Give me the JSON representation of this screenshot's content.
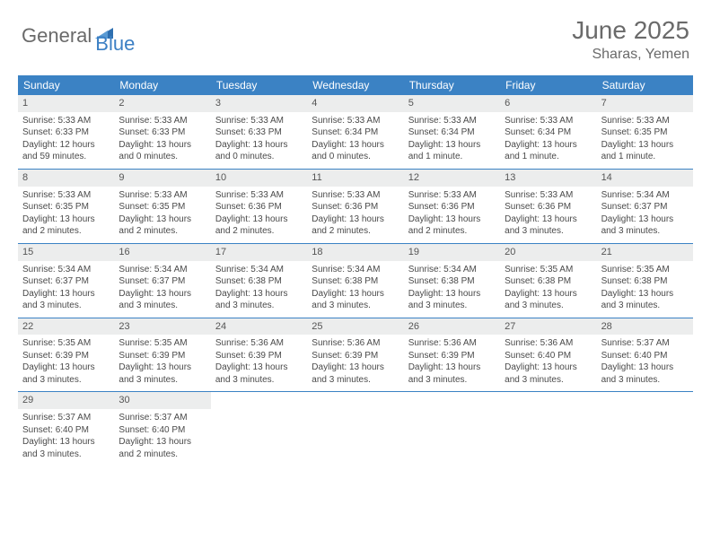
{
  "brand": {
    "word1": "General",
    "word2": "Blue"
  },
  "title": "June 2025",
  "location": "Sharas, Yemen",
  "colors": {
    "header_bg": "#3b82c4",
    "header_text": "#ffffff",
    "daynum_bg": "#eceded",
    "rule": "#3b82c4",
    "body_text": "#4a4a4a",
    "brand_gray": "#6a6a6a",
    "brand_blue": "#3b7fc4",
    "page_bg": "#ffffff"
  },
  "day_names": [
    "Sunday",
    "Monday",
    "Tuesday",
    "Wednesday",
    "Thursday",
    "Friday",
    "Saturday"
  ],
  "weeks": [
    [
      {
        "n": "1",
        "sr": "Sunrise: 5:33 AM",
        "ss": "Sunset: 6:33 PM",
        "dl": "Daylight: 12 hours and 59 minutes."
      },
      {
        "n": "2",
        "sr": "Sunrise: 5:33 AM",
        "ss": "Sunset: 6:33 PM",
        "dl": "Daylight: 13 hours and 0 minutes."
      },
      {
        "n": "3",
        "sr": "Sunrise: 5:33 AM",
        "ss": "Sunset: 6:33 PM",
        "dl": "Daylight: 13 hours and 0 minutes."
      },
      {
        "n": "4",
        "sr": "Sunrise: 5:33 AM",
        "ss": "Sunset: 6:34 PM",
        "dl": "Daylight: 13 hours and 0 minutes."
      },
      {
        "n": "5",
        "sr": "Sunrise: 5:33 AM",
        "ss": "Sunset: 6:34 PM",
        "dl": "Daylight: 13 hours and 1 minute."
      },
      {
        "n": "6",
        "sr": "Sunrise: 5:33 AM",
        "ss": "Sunset: 6:34 PM",
        "dl": "Daylight: 13 hours and 1 minute."
      },
      {
        "n": "7",
        "sr": "Sunrise: 5:33 AM",
        "ss": "Sunset: 6:35 PM",
        "dl": "Daylight: 13 hours and 1 minute."
      }
    ],
    [
      {
        "n": "8",
        "sr": "Sunrise: 5:33 AM",
        "ss": "Sunset: 6:35 PM",
        "dl": "Daylight: 13 hours and 2 minutes."
      },
      {
        "n": "9",
        "sr": "Sunrise: 5:33 AM",
        "ss": "Sunset: 6:35 PM",
        "dl": "Daylight: 13 hours and 2 minutes."
      },
      {
        "n": "10",
        "sr": "Sunrise: 5:33 AM",
        "ss": "Sunset: 6:36 PM",
        "dl": "Daylight: 13 hours and 2 minutes."
      },
      {
        "n": "11",
        "sr": "Sunrise: 5:33 AM",
        "ss": "Sunset: 6:36 PM",
        "dl": "Daylight: 13 hours and 2 minutes."
      },
      {
        "n": "12",
        "sr": "Sunrise: 5:33 AM",
        "ss": "Sunset: 6:36 PM",
        "dl": "Daylight: 13 hours and 2 minutes."
      },
      {
        "n": "13",
        "sr": "Sunrise: 5:33 AM",
        "ss": "Sunset: 6:36 PM",
        "dl": "Daylight: 13 hours and 3 minutes."
      },
      {
        "n": "14",
        "sr": "Sunrise: 5:34 AM",
        "ss": "Sunset: 6:37 PM",
        "dl": "Daylight: 13 hours and 3 minutes."
      }
    ],
    [
      {
        "n": "15",
        "sr": "Sunrise: 5:34 AM",
        "ss": "Sunset: 6:37 PM",
        "dl": "Daylight: 13 hours and 3 minutes."
      },
      {
        "n": "16",
        "sr": "Sunrise: 5:34 AM",
        "ss": "Sunset: 6:37 PM",
        "dl": "Daylight: 13 hours and 3 minutes."
      },
      {
        "n": "17",
        "sr": "Sunrise: 5:34 AM",
        "ss": "Sunset: 6:38 PM",
        "dl": "Daylight: 13 hours and 3 minutes."
      },
      {
        "n": "18",
        "sr": "Sunrise: 5:34 AM",
        "ss": "Sunset: 6:38 PM",
        "dl": "Daylight: 13 hours and 3 minutes."
      },
      {
        "n": "19",
        "sr": "Sunrise: 5:34 AM",
        "ss": "Sunset: 6:38 PM",
        "dl": "Daylight: 13 hours and 3 minutes."
      },
      {
        "n": "20",
        "sr": "Sunrise: 5:35 AM",
        "ss": "Sunset: 6:38 PM",
        "dl": "Daylight: 13 hours and 3 minutes."
      },
      {
        "n": "21",
        "sr": "Sunrise: 5:35 AM",
        "ss": "Sunset: 6:38 PM",
        "dl": "Daylight: 13 hours and 3 minutes."
      }
    ],
    [
      {
        "n": "22",
        "sr": "Sunrise: 5:35 AM",
        "ss": "Sunset: 6:39 PM",
        "dl": "Daylight: 13 hours and 3 minutes."
      },
      {
        "n": "23",
        "sr": "Sunrise: 5:35 AM",
        "ss": "Sunset: 6:39 PM",
        "dl": "Daylight: 13 hours and 3 minutes."
      },
      {
        "n": "24",
        "sr": "Sunrise: 5:36 AM",
        "ss": "Sunset: 6:39 PM",
        "dl": "Daylight: 13 hours and 3 minutes."
      },
      {
        "n": "25",
        "sr": "Sunrise: 5:36 AM",
        "ss": "Sunset: 6:39 PM",
        "dl": "Daylight: 13 hours and 3 minutes."
      },
      {
        "n": "26",
        "sr": "Sunrise: 5:36 AM",
        "ss": "Sunset: 6:39 PM",
        "dl": "Daylight: 13 hours and 3 minutes."
      },
      {
        "n": "27",
        "sr": "Sunrise: 5:36 AM",
        "ss": "Sunset: 6:40 PM",
        "dl": "Daylight: 13 hours and 3 minutes."
      },
      {
        "n": "28",
        "sr": "Sunrise: 5:37 AM",
        "ss": "Sunset: 6:40 PM",
        "dl": "Daylight: 13 hours and 3 minutes."
      }
    ],
    [
      {
        "n": "29",
        "sr": "Sunrise: 5:37 AM",
        "ss": "Sunset: 6:40 PM",
        "dl": "Daylight: 13 hours and 3 minutes."
      },
      {
        "n": "30",
        "sr": "Sunrise: 5:37 AM",
        "ss": "Sunset: 6:40 PM",
        "dl": "Daylight: 13 hours and 2 minutes."
      },
      null,
      null,
      null,
      null,
      null
    ]
  ]
}
